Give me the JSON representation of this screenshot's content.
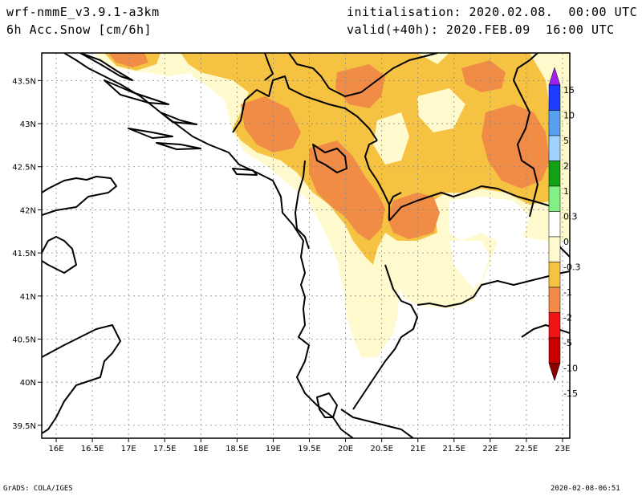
{
  "header": {
    "model": "wrf-nmmE_v3.9.1-a3km",
    "variable": "6h Acc.Snow [cm/6h]",
    "initialisation": "initialisation: 2020.02.08.  00:00 UTC",
    "valid": "valid(+40h): 2020.FEB.09  16:00 UTC"
  },
  "footer": {
    "left": "GrADS: COLA/IGES",
    "right": "2020-02-08-06:51"
  },
  "axes": {
    "lon_labels": [
      "16E",
      "16.5E",
      "17E",
      "17.5E",
      "18E",
      "18.5E",
      "19E",
      "19.5E",
      "20E",
      "20.5E",
      "21E",
      "21.5E",
      "22E",
      "22.5E",
      "23E"
    ],
    "lat_labels": [
      "43.5N",
      "43N",
      "42.5N",
      "42N",
      "41.5N",
      "41N",
      "40.5N",
      "40N",
      "39.5N"
    ],
    "lon_range": [
      15.8,
      23.1
    ],
    "lat_range": [
      39.35,
      43.82
    ]
  },
  "colorbar": {
    "labels": [
      "15",
      "10",
      "5",
      "2",
      "1",
      "0.3",
      "0",
      "-0.3",
      "-1",
      "-2",
      "-5",
      "-10",
      "-15"
    ],
    "colors": [
      "#a020f0",
      "#1e3cff",
      "#5aa0f0",
      "#a0d2ff",
      "#14a014",
      "#82f082",
      "#ffffff",
      "#fffacd",
      "#f5c242",
      "#f08c46",
      "#f01414",
      "#c80000",
      "#8c0000"
    ]
  },
  "snow_colors": {
    "light": "#fffacd",
    "moderate": "#f5c242",
    "heavy": "#f08c46"
  }
}
